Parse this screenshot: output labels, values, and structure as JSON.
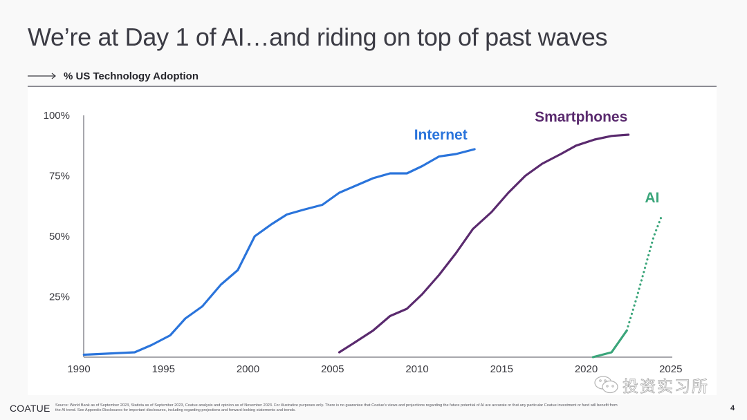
{
  "slide": {
    "title": "We’re at Day 1 of AI…and riding on top of past waves",
    "subtitle": "% US Technology Adoption",
    "subtitle_icon": "long-arrow-right-icon"
  },
  "footer": {
    "logo": "COATUE",
    "source_line1": "Source: World Bank as of September 2023, Statista as of September 2023, Coatue analysis and opinion as of November 2023. For illustrative purposes only. There is no guarantee that Coatue’s views and projections regarding the future potential of AI are accurate or that any particular Coatue investment or fund will benefit from",
    "source_line2": "the AI trend. See Appendix-Disclosures for important disclosures, including regarding projections and forward-looking statements and trends.",
    "page_number": "4"
  },
  "watermark": {
    "icon": "wechat-icon",
    "text": "投资实习所"
  },
  "chart_data": {
    "type": "line",
    "title": "% US Technology Adoption",
    "xlabel": "",
    "ylabel": "",
    "xlim": [
      1990,
      2025
    ],
    "ylim": [
      0,
      100
    ],
    "x_ticks": [
      "1990",
      "1995",
      "2000",
      "2005",
      "2010",
      "2015",
      "2020",
      "2025"
    ],
    "y_ticks": [
      "100%",
      "75%",
      "50%",
      "25%"
    ],
    "y_tick_values": [
      100,
      75,
      50,
      25
    ],
    "x_tick_values": [
      1990,
      1995,
      2000,
      2005,
      2010,
      2015,
      2020,
      2025
    ],
    "grid": false,
    "legend": "inline labels near series ends",
    "series": [
      {
        "name": "Internet",
        "color": "#2a74db",
        "style": "solid",
        "points": [
          [
            1990.3,
            1
          ],
          [
            1993.3,
            2
          ],
          [
            1994.3,
            5
          ],
          [
            1995.4,
            9
          ],
          [
            1996.3,
            16
          ],
          [
            1997.3,
            21
          ],
          [
            1998.4,
            30
          ],
          [
            1999.4,
            36
          ],
          [
            2000.4,
            50
          ],
          [
            2001.4,
            55
          ],
          [
            2002.3,
            59
          ],
          [
            2003.3,
            61
          ],
          [
            2004.4,
            63
          ],
          [
            2005.4,
            68
          ],
          [
            2006.4,
            71
          ],
          [
            2007.4,
            74
          ],
          [
            2008.4,
            76
          ],
          [
            2009.4,
            76
          ],
          [
            2010.3,
            79
          ],
          [
            2011.3,
            83
          ],
          [
            2012.3,
            84
          ],
          [
            2013.4,
            86
          ]
        ],
        "label_anchor": [
          2011.4,
          90
        ]
      },
      {
        "name": "Smartphones",
        "color": "#5a2a6e",
        "style": "solid",
        "points": [
          [
            2005.4,
            2
          ],
          [
            2006.3,
            6
          ],
          [
            2007.4,
            11
          ],
          [
            2008.4,
            17
          ],
          [
            2009.4,
            20
          ],
          [
            2010.3,
            26
          ],
          [
            2011.3,
            34
          ],
          [
            2012.3,
            43
          ],
          [
            2013.3,
            53
          ],
          [
            2014.4,
            60
          ],
          [
            2015.4,
            68
          ],
          [
            2016.4,
            75
          ],
          [
            2017.4,
            80
          ],
          [
            2018.5,
            84
          ],
          [
            2019.4,
            87.5
          ],
          [
            2020.5,
            90
          ],
          [
            2021.5,
            91.5
          ],
          [
            2022.5,
            92
          ]
        ],
        "label_anchor": [
          2019.7,
          97.5
        ]
      },
      {
        "name": "AI",
        "color": "#3aa57a",
        "style": "solid",
        "points": [
          [
            2020.4,
            0
          ],
          [
            2021.5,
            2
          ],
          [
            2022.4,
            11
          ]
        ],
        "label_anchor": [
          2023.9,
          64
        ]
      },
      {
        "name": "AI (projected)",
        "color": "#3aa57a",
        "style": "dotted",
        "points": [
          [
            2022.4,
            11
          ],
          [
            2023.0,
            25
          ],
          [
            2023.6,
            40
          ],
          [
            2024.0,
            50
          ],
          [
            2024.5,
            59
          ]
        ]
      }
    ]
  }
}
